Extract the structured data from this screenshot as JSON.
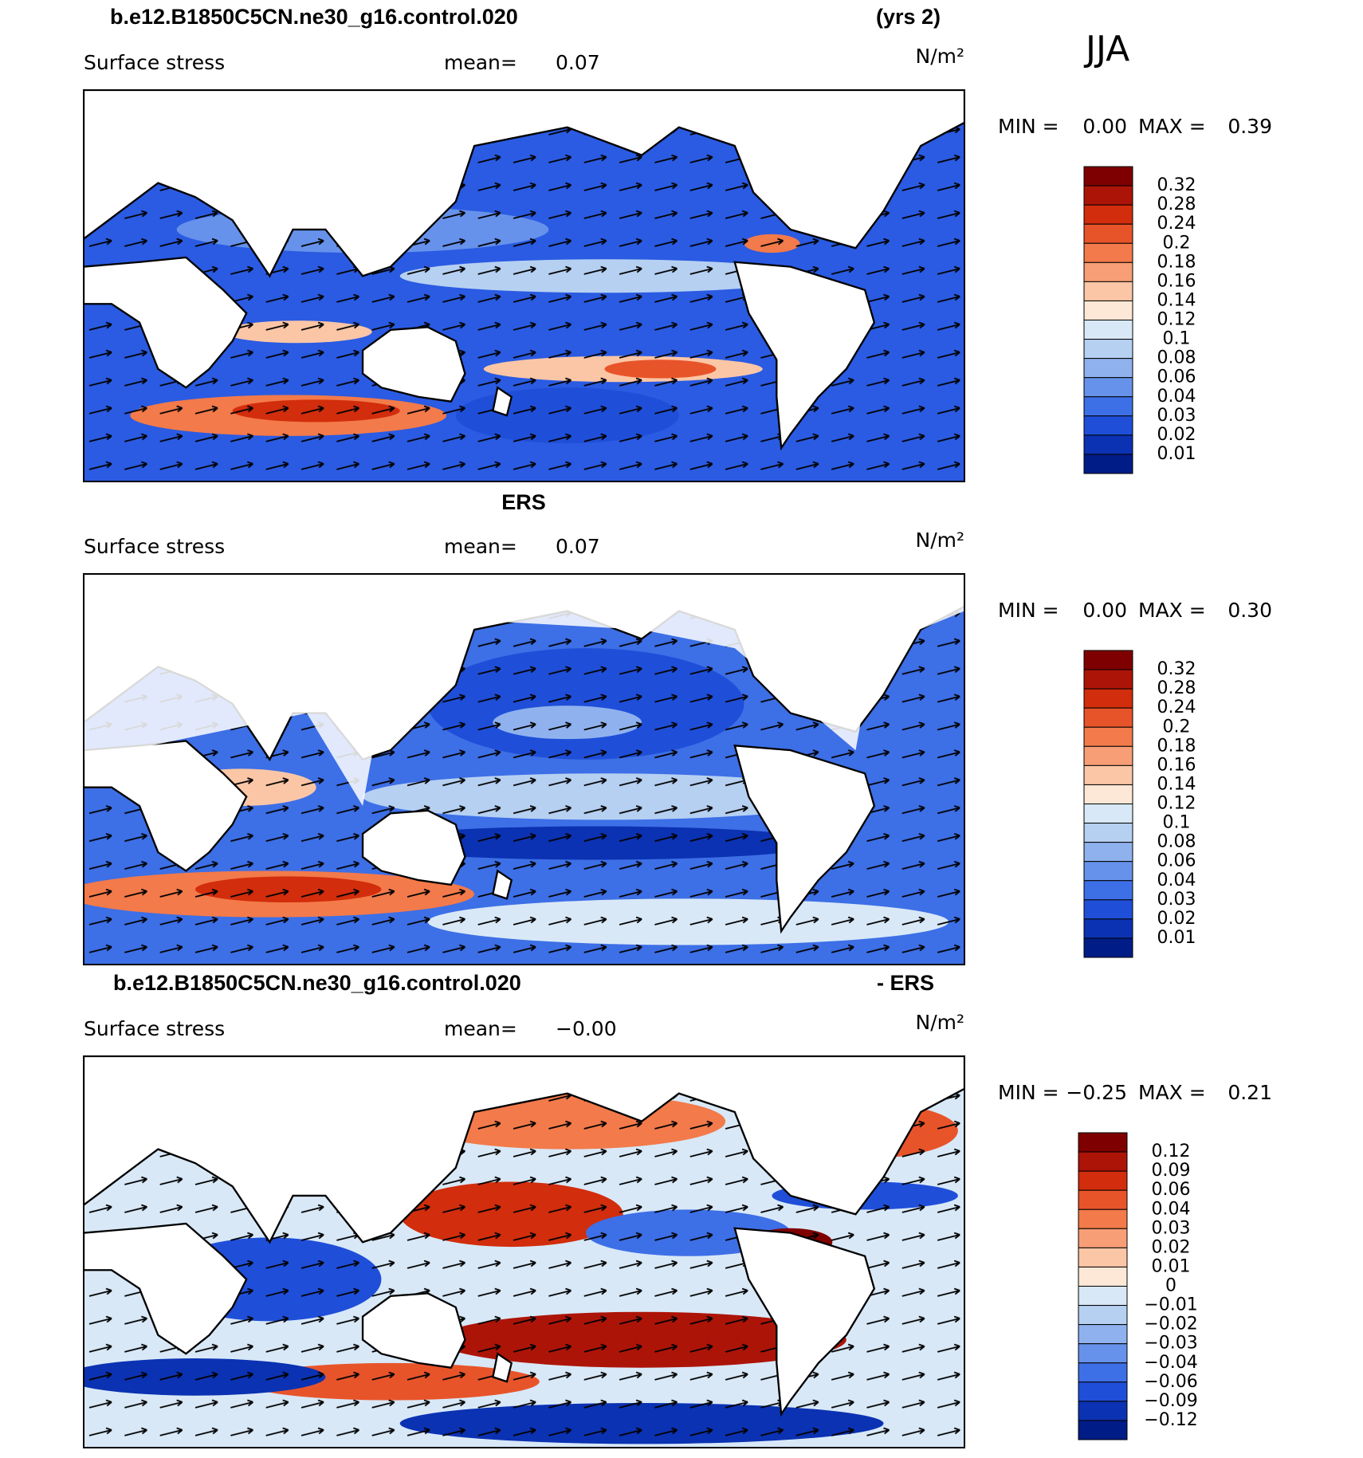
{
  "figure": {
    "season": "JJA",
    "panels": [
      {
        "title_left": "b.e12.B1850C5CN.ne30_g16.control.020",
        "title_right": "(yrs 2)",
        "subtitle": "Surface stress",
        "mean_label": "mean=",
        "mean": "0.07",
        "units": "N/m²",
        "min_label": "MIN =",
        "min": "0.00",
        "max_label": "MAX =",
        "max": "0.39",
        "colorbar": {
          "labels": [
            0.32,
            0.28,
            0.24,
            0.2,
            0.18,
            0.16,
            0.14,
            0.12,
            0.1,
            0.08,
            0.06,
            0.04,
            0.03,
            0.02,
            0.01
          ],
          "colors": [
            "#7f0000",
            "#ad1408",
            "#d22d0c",
            "#e8542a",
            "#f37a4a",
            "#f79e76",
            "#fbc6a6",
            "#fde7d6",
            "#d8e8f7",
            "#b6d0f2",
            "#8fb2ee",
            "#6692eb",
            "#3d6fe6",
            "#1f4fd9",
            "#0b32b2",
            "#001c86"
          ]
        }
      },
      {
        "title_left": "ERS",
        "subtitle": "Surface stress",
        "mean_label": "mean=",
        "mean": "0.07",
        "units": "N/m²",
        "min_label": "MIN =",
        "min": "0.00",
        "max_label": "MAX =",
        "max": "0.30",
        "colorbar": {
          "labels": [
            0.32,
            0.28,
            0.24,
            0.2,
            0.18,
            0.16,
            0.14,
            0.12,
            0.1,
            0.08,
            0.06,
            0.04,
            0.03,
            0.02,
            0.01
          ],
          "colors": [
            "#7f0000",
            "#ad1408",
            "#d22d0c",
            "#e8542a",
            "#f37a4a",
            "#f79e76",
            "#fbc6a6",
            "#fde7d6",
            "#d8e8f7",
            "#b6d0f2",
            "#8fb2ee",
            "#6692eb",
            "#3d6fe6",
            "#1f4fd9",
            "#0b32b2",
            "#001c86"
          ]
        }
      },
      {
        "title_left": "b.e12.B1850C5CN.ne30_g16.control.020",
        "title_right": "- ERS",
        "subtitle": "Surface stress",
        "mean_label": "mean=",
        "mean": "−0.00",
        "units": "N/m²",
        "min_label": "MIN =",
        "min": "−0.25",
        "max_label": "MAX =",
        "max": "0.21",
        "colorbar": {
          "labels": [
            0.12,
            0.09,
            0.06,
            0.04,
            0.03,
            0.02,
            0.01,
            0,
            {
              "value": -0.01,
              "label": "−0.01"
            },
            {
              "value": -0.02,
              "label": "−0.02"
            },
            {
              "value": -0.03,
              "label": "−0.03"
            },
            {
              "value": -0.04,
              "label": "−0.04"
            },
            {
              "value": -0.06,
              "label": "−0.06"
            },
            {
              "value": -0.09,
              "label": "−0.09"
            },
            {
              "value": -0.12,
              "label": "−0.12"
            }
          ],
          "colors": [
            "#7f0000",
            "#ad1408",
            "#d22d0c",
            "#e8542a",
            "#f37a4a",
            "#f79e76",
            "#fbc6a6",
            "#fde7d6",
            "#d8e8f7",
            "#b6d0f2",
            "#8fb2ee",
            "#6692eb",
            "#3d6fe6",
            "#1f4fd9",
            "#0b32b2",
            "#001c86"
          ]
        }
      }
    ]
  }
}
